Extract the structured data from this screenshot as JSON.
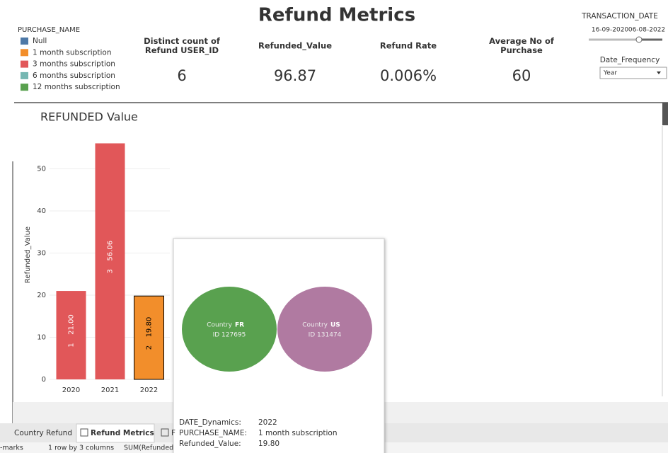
{
  "header": {
    "title": "Refund Metrics"
  },
  "legend": {
    "title": "PURCHASE_NAME",
    "items": [
      {
        "name": "Null",
        "color": "#4e79a7"
      },
      {
        "name": "1 month subscription",
        "color": "#f28e2b"
      },
      {
        "name": "3 months subscription",
        "color": "#e15759"
      },
      {
        "name": "6 months subscription",
        "color": "#76b7b2"
      },
      {
        "name": "12 months subscription",
        "color": "#59a14f"
      }
    ]
  },
  "kpis": [
    {
      "label_lines": [
        "Distinct count of",
        "Refund USER_ID"
      ],
      "value": "6"
    },
    {
      "label_lines": [
        "Refunded_Value"
      ],
      "value": "96.87"
    },
    {
      "label_lines": [
        "Refund Rate"
      ],
      "value": "0.006%"
    },
    {
      "label_lines": [
        "Average No of",
        "Purchase"
      ],
      "value": "60"
    }
  ],
  "filters": {
    "date_title": "TRANSACTION_DATE",
    "date_start": "16-09-2020",
    "date_end": "06-08-2022",
    "frequency_title": "Date_Frequency",
    "frequency_value": "Year"
  },
  "chart_data": {
    "type": "bar",
    "title": "REFUNDED Value",
    "y_label": "Refunded_Value",
    "categories": [
      "2020",
      "2021",
      "2022"
    ],
    "values": [
      21.0,
      56.06,
      19.8
    ],
    "value_labels": [
      "21.00",
      "56.06",
      "19.80"
    ],
    "count_labels": [
      1,
      3,
      2
    ],
    "colors": [
      "#e15759",
      "#e15759",
      "#f28e2b"
    ],
    "ylim": [
      0,
      59
    ],
    "yticks": [
      0,
      10,
      20,
      30,
      40,
      50
    ],
    "grid": true
  },
  "tooltip": {
    "circles": [
      {
        "country_label": "Country",
        "country": "FR",
        "id": "ID 127695",
        "color": "#59a14f"
      },
      {
        "country_label": "Country",
        "country": "US",
        "id": "ID 131474",
        "color": "#b07aa1"
      }
    ],
    "rows": [
      {
        "key": "DATE_Dynamics:",
        "value": "2022"
      },
      {
        "key": "PURCHASE_NAME:",
        "value": "1 month subscription"
      },
      {
        "key": "Refunded_Value:",
        "value": "19.80"
      }
    ]
  },
  "tabs": [
    "Country Refund",
    "Refund Metrics",
    "F"
  ],
  "status": [
    "-marks",
    "1 row by 3 columns",
    "SUM(Refunded"
  ]
}
